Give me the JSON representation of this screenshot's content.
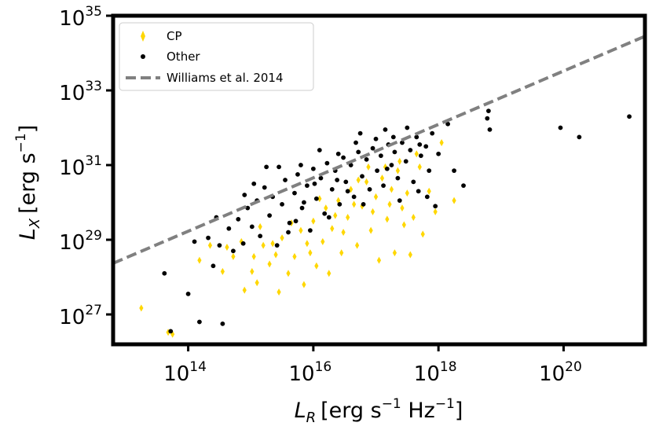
{
  "chart_data": {
    "type": "scatter",
    "title": "",
    "x_scale": "log",
    "y_scale": "log",
    "xlim_log10": [
      12.8,
      21.3
    ],
    "ylim_log10": [
      26.2,
      35.0
    ],
    "x_ticks": [
      {
        "base": "10",
        "exp": "14",
        "log10": 14
      },
      {
        "base": "10",
        "exp": "16",
        "log10": 16
      },
      {
        "base": "10",
        "exp": "18",
        "log10": 18
      },
      {
        "base": "10",
        "exp": "20",
        "log10": 20
      }
    ],
    "y_ticks": [
      {
        "base": "10",
        "exp": "27",
        "log10": 27
      },
      {
        "base": "10",
        "exp": "29",
        "log10": 29
      },
      {
        "base": "10",
        "exp": "31",
        "log10": 31
      },
      {
        "base": "10",
        "exp": "33",
        "log10": 33
      },
      {
        "base": "10",
        "exp": "35",
        "log10": 35
      }
    ],
    "xlabel": {
      "symbol": "L",
      "sub": "R",
      "unit_open": "[erg s",
      "unit_exp1": "−1",
      "unit_mid": " Hz",
      "unit_exp2": "−1",
      "unit_close": "]"
    },
    "ylabel": {
      "symbol": "L",
      "sub": "X",
      "unit_open": "[erg s",
      "unit_exp1": "−1",
      "unit_close": "]"
    },
    "legend": {
      "position": "top-left",
      "entries": [
        {
          "label": "CP",
          "marker": "thin-diamond",
          "color": "#FFD700"
        },
        {
          "label": "Other",
          "marker": "point",
          "color": "#000000"
        },
        {
          "label": "Williams et al. 2014",
          "marker": "dashed-line",
          "color": "#808080"
        }
      ]
    },
    "reference_line": {
      "name": "Williams et al. 2014",
      "color": "#808080",
      "points_log10": [
        [
          12.8,
          28.37
        ],
        [
          21.3,
          34.45
        ]
      ]
    },
    "series": [
      {
        "name": "CP",
        "marker": "thin-diamond",
        "color": "#FFD700",
        "points_log10": [
          [
            13.25,
            27.17
          ],
          [
            13.68,
            26.52
          ],
          [
            13.75,
            26.47
          ],
          [
            14.18,
            28.45
          ],
          [
            14.35,
            28.85
          ],
          [
            14.55,
            28.15
          ],
          [
            14.72,
            28.55
          ],
          [
            14.85,
            28.95
          ],
          [
            14.9,
            27.65
          ],
          [
            15.02,
            28.15
          ],
          [
            15.1,
            27.85
          ],
          [
            15.2,
            28.85
          ],
          [
            15.3,
            28.35
          ],
          [
            15.4,
            28.6
          ],
          [
            15.45,
            27.6
          ],
          [
            15.5,
            29.05
          ],
          [
            15.6,
            28.1
          ],
          [
            15.7,
            28.55
          ],
          [
            15.8,
            29.25
          ],
          [
            15.85,
            27.8
          ],
          [
            15.95,
            28.65
          ],
          [
            16.0,
            29.5
          ],
          [
            16.05,
            28.3
          ],
          [
            16.15,
            28.95
          ],
          [
            16.2,
            29.85
          ],
          [
            16.25,
            28.1
          ],
          [
            16.3,
            29.3
          ],
          [
            16.4,
            30.05
          ],
          [
            16.45,
            28.65
          ],
          [
            16.55,
            29.6
          ],
          [
            16.6,
            30.35
          ],
          [
            16.7,
            28.85
          ],
          [
            16.78,
            29.9
          ],
          [
            16.85,
            30.55
          ],
          [
            16.92,
            29.25
          ],
          [
            17.0,
            30.15
          ],
          [
            17.05,
            28.45
          ],
          [
            17.1,
            30.65
          ],
          [
            17.18,
            29.55
          ],
          [
            17.25,
            30.35
          ],
          [
            17.3,
            28.65
          ],
          [
            17.35,
            30.85
          ],
          [
            17.42,
            29.85
          ],
          [
            17.5,
            30.25
          ],
          [
            17.55,
            28.6
          ],
          [
            17.6,
            29.6
          ],
          [
            17.7,
            30.95
          ],
          [
            17.75,
            29.15
          ],
          [
            17.85,
            30.3
          ],
          [
            17.95,
            29.75
          ],
          [
            18.05,
            31.6
          ],
          [
            18.25,
            30.05
          ],
          [
            15.15,
            29.35
          ],
          [
            15.65,
            29.45
          ],
          [
            16.1,
            30.1
          ],
          [
            16.48,
            29.2
          ],
          [
            16.72,
            30.6
          ],
          [
            16.95,
            29.75
          ],
          [
            17.15,
            30.95
          ],
          [
            17.45,
            29.4
          ],
          [
            17.65,
            31.3
          ],
          [
            15.35,
            28.9
          ],
          [
            15.9,
            28.9
          ],
          [
            16.35,
            29.65
          ],
          [
            16.65,
            29.95
          ],
          [
            16.88,
            30.95
          ],
          [
            17.22,
            29.95
          ],
          [
            17.38,
            31.1
          ],
          [
            14.62,
            28.8
          ],
          [
            15.05,
            28.55
          ]
        ]
      },
      {
        "name": "Other",
        "marker": "point",
        "color": "#000000",
        "points_log10": [
          [
            13.72,
            26.55
          ],
          [
            13.62,
            28.1
          ],
          [
            14.0,
            27.55
          ],
          [
            14.1,
            28.95
          ],
          [
            14.18,
            26.8
          ],
          [
            14.32,
            29.05
          ],
          [
            14.4,
            28.3
          ],
          [
            14.5,
            28.85
          ],
          [
            14.55,
            26.75
          ],
          [
            14.65,
            29.3
          ],
          [
            14.72,
            28.7
          ],
          [
            14.8,
            29.55
          ],
          [
            14.88,
            28.9
          ],
          [
            14.95,
            29.85
          ],
          [
            15.02,
            29.35
          ],
          [
            15.1,
            30.05
          ],
          [
            15.15,
            29.1
          ],
          [
            15.22,
            30.4
          ],
          [
            15.3,
            29.65
          ],
          [
            15.35,
            30.15
          ],
          [
            15.42,
            28.85
          ],
          [
            15.5,
            29.95
          ],
          [
            15.55,
            30.6
          ],
          [
            15.62,
            29.45
          ],
          [
            15.7,
            30.25
          ],
          [
            15.75,
            30.75
          ],
          [
            15.82,
            29.85
          ],
          [
            15.9,
            30.45
          ],
          [
            15.95,
            29.25
          ],
          [
            16.0,
            30.9
          ],
          [
            16.05,
            30.1
          ],
          [
            16.12,
            30.65
          ],
          [
            16.18,
            29.7
          ],
          [
            16.22,
            31.05
          ],
          [
            16.3,
            30.35
          ],
          [
            16.35,
            30.85
          ],
          [
            16.42,
            29.95
          ],
          [
            16.48,
            31.2
          ],
          [
            16.52,
            30.55
          ],
          [
            16.6,
            31.0
          ],
          [
            16.65,
            30.15
          ],
          [
            16.72,
            31.35
          ],
          [
            16.78,
            30.7
          ],
          [
            16.85,
            31.15
          ],
          [
            16.9,
            30.35
          ],
          [
            16.95,
            31.45
          ],
          [
            17.02,
            30.85
          ],
          [
            17.08,
            31.25
          ],
          [
            17.12,
            30.45
          ],
          [
            17.2,
            31.55
          ],
          [
            17.25,
            31.0
          ],
          [
            17.3,
            31.35
          ],
          [
            17.35,
            30.65
          ],
          [
            17.42,
            31.6
          ],
          [
            17.48,
            31.1
          ],
          [
            17.55,
            31.4
          ],
          [
            17.6,
            30.55
          ],
          [
            17.65,
            31.75
          ],
          [
            17.72,
            31.25
          ],
          [
            17.8,
            31.5
          ],
          [
            17.85,
            30.85
          ],
          [
            17.9,
            31.85
          ],
          [
            17.95,
            29.9
          ],
          [
            18.0,
            31.3
          ],
          [
            18.15,
            32.1
          ],
          [
            18.25,
            30.85
          ],
          [
            18.4,
            30.45
          ],
          [
            18.8,
            32.45
          ],
          [
            18.82,
            31.95
          ],
          [
            18.78,
            32.25
          ],
          [
            19.95,
            32.0
          ],
          [
            20.25,
            31.75
          ],
          [
            21.05,
            32.3
          ],
          [
            15.8,
            31.0
          ],
          [
            16.4,
            31.3
          ],
          [
            17.0,
            31.7
          ],
          [
            17.5,
            32.0
          ],
          [
            15.45,
            30.95
          ],
          [
            16.1,
            31.4
          ],
          [
            16.75,
            31.85
          ],
          [
            17.15,
            31.95
          ],
          [
            17.7,
            31.55
          ],
          [
            15.05,
            30.5
          ],
          [
            15.6,
            29.2
          ],
          [
            16.25,
            29.6
          ],
          [
            16.8,
            29.95
          ],
          [
            17.38,
            30.05
          ],
          [
            14.45,
            29.6
          ],
          [
            14.9,
            30.2
          ],
          [
            15.25,
            30.95
          ],
          [
            15.85,
            30.0
          ],
          [
            16.55,
            30.3
          ],
          [
            17.18,
            30.9
          ],
          [
            17.68,
            30.3
          ],
          [
            16.02,
            30.5
          ],
          [
            16.68,
            31.6
          ],
          [
            17.28,
            31.75
          ],
          [
            17.82,
            30.15
          ],
          [
            15.72,
            29.5
          ],
          [
            16.38,
            30.6
          ]
        ]
      }
    ]
  }
}
